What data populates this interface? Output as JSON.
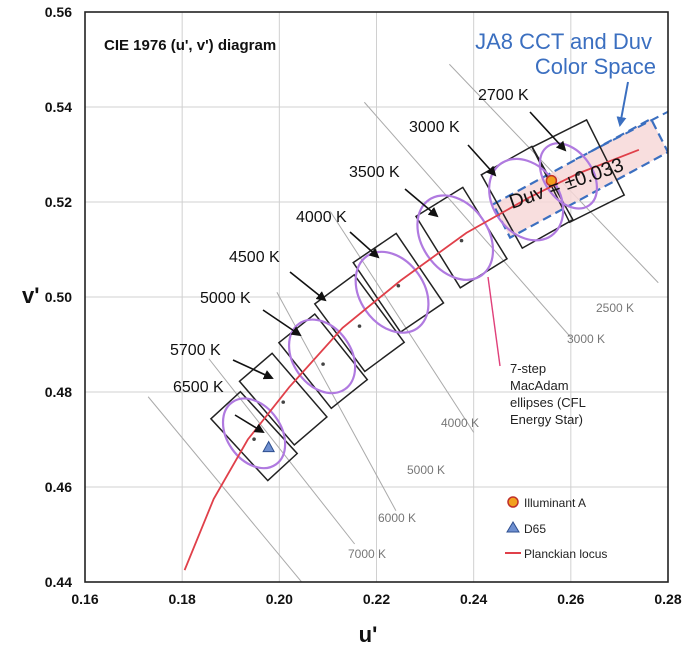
{
  "chart_data": {
    "type": "scatter",
    "title": "CIE 1976 (u', v') diagram",
    "xlabel": "u'",
    "ylabel": "v'",
    "xlim": [
      0.16,
      0.28
    ],
    "ylim": [
      0.44,
      0.56
    ],
    "x_ticks": [
      "0.16",
      "0.18",
      "0.20",
      "0.22",
      "0.24",
      "0.26",
      "0.28"
    ],
    "y_ticks": [
      "0.44",
      "0.46",
      "0.48",
      "0.50",
      "0.52",
      "0.54",
      "0.56"
    ],
    "grid": true,
    "planckian_locus": {
      "name": "Planckian locus",
      "color": "#e0404a",
      "points": [
        [
          0.1805,
          0.4425
        ],
        [
          0.1865,
          0.4575
        ],
        [
          0.1935,
          0.47
        ],
        [
          0.202,
          0.481
        ],
        [
          0.213,
          0.4935
        ],
        [
          0.225,
          0.5035
        ],
        [
          0.2385,
          0.5135
        ],
        [
          0.2515,
          0.521
        ],
        [
          0.2615,
          0.526
        ],
        [
          0.274,
          0.531
        ]
      ]
    },
    "illuminant_a": {
      "name": "Illuminant A",
      "u": 0.256,
      "v": 0.5245,
      "color": "#f2a01e"
    },
    "d65": {
      "name": "D65",
      "u": 0.1978,
      "v": 0.4683,
      "color": "#6e8fd0"
    },
    "cct_boxes": [
      {
        "label": "6500 K",
        "cx": 0.1948,
        "cy": 0.4707
      },
      {
        "label": "5700 K",
        "cx": 0.2008,
        "cy": 0.4785
      },
      {
        "label": "5000 K",
        "cx": 0.209,
        "cy": 0.4865
      },
      {
        "label": "4500 K",
        "cx": 0.2165,
        "cy": 0.4945
      },
      {
        "label": "4000 K",
        "cx": 0.2245,
        "cy": 0.503
      },
      {
        "label": "3500 K",
        "cx": 0.2375,
        "cy": 0.5125
      },
      {
        "label": "3000 K",
        "cx": 0.251,
        "cy": 0.521
      },
      {
        "label": "2700 K",
        "cx": 0.2615,
        "cy": 0.5265
      }
    ],
    "ellipses": [
      {
        "cx": 0.1948,
        "cy": 0.4713
      },
      {
        "cx": 0.2088,
        "cy": 0.4875
      },
      {
        "cx": 0.2232,
        "cy": 0.501
      },
      {
        "cx": 0.2362,
        "cy": 0.5125
      },
      {
        "cx": 0.2508,
        "cy": 0.5205
      },
      {
        "cx": 0.2595,
        "cy": 0.5255
      }
    ],
    "isotemperature_labels": [
      "2500 K",
      "3000 K",
      "4000 K",
      "5000 K",
      "6000 K",
      "7000 K"
    ],
    "ja8_title_line1": "JA8 CCT and Duv",
    "ja8_title_line2": "Color Space",
    "duv_label": "Duv = ±0.033",
    "macadam_note": [
      "7-step",
      "MacAdam",
      "ellipses (CFL",
      "Energy Star)"
    ],
    "legend": [
      "Illuminant A",
      "D65",
      "Planckian locus"
    ],
    "colors": {
      "ellipse": "#b07ae0",
      "ja8_box": "#3b6fc0",
      "ja8_fill": "#f7d8d8",
      "grid": "#d0d0d0",
      "box": "#222222",
      "isoline": "#aaaaaa"
    }
  }
}
